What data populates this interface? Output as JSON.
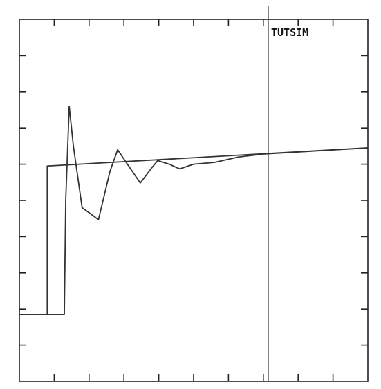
{
  "chart_data": {
    "type": "line",
    "title": "TUTSIM",
    "xlim": [
      0,
      10
    ],
    "ylim": [
      0,
      10
    ],
    "xticks": [
      1,
      2,
      3,
      4,
      5,
      6,
      7,
      8,
      9
    ],
    "yticks": [
      1,
      2,
      3,
      4,
      5,
      6,
      7,
      8,
      9
    ],
    "series": [
      {
        "color": "#333333",
        "x": [
          0,
          0.8,
          0.8,
          10
        ],
        "values": [
          1.85,
          1.85,
          5.95,
          6.45
        ]
      },
      {
        "color": "#333333",
        "x": [
          0,
          1.29,
          1.33,
          1.43,
          1.55,
          1.8,
          2.27,
          2.6,
          2.82,
          3.1,
          3.47,
          3.8,
          3.97,
          4.3,
          4.6,
          5.0,
          5.6,
          6.3,
          7.0,
          10
        ],
        "values": [
          1.85,
          1.85,
          5.0,
          7.6,
          6.5,
          4.8,
          4.47,
          5.8,
          6.4,
          6.0,
          5.48,
          5.9,
          6.1,
          6.0,
          5.87,
          6.0,
          6.05,
          6.2,
          6.28,
          6.45
        ]
      }
    ]
  }
}
